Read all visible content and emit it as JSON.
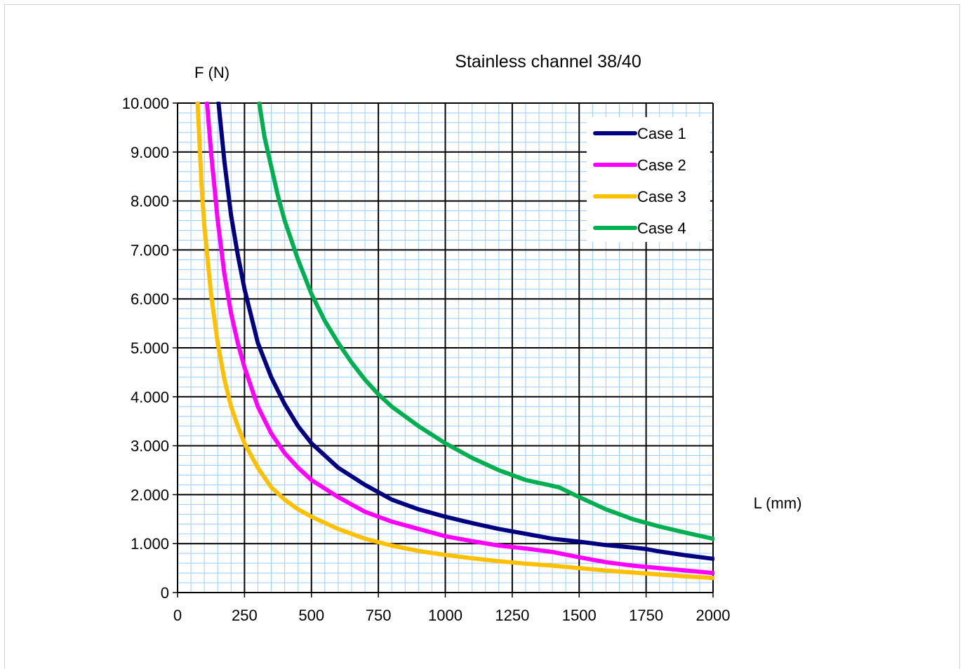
{
  "chart_data": {
    "type": "line",
    "title": "Stainless channel 38/40",
    "xlabel": "L (mm)",
    "ylabel": "F (N)",
    "xlim": [
      0,
      2000
    ],
    "ylim": [
      0,
      10000
    ],
    "x_ticks": [
      0,
      250,
      500,
      750,
      1000,
      1250,
      1500,
      1750,
      2000
    ],
    "x_tick_labels": [
      "0",
      "250",
      "500",
      "750",
      "1000",
      "1250",
      "1500",
      "1750",
      "2000"
    ],
    "y_ticks": [
      0,
      1000,
      2000,
      3000,
      4000,
      5000,
      6000,
      7000,
      8000,
      9000,
      10000
    ],
    "y_tick_labels": [
      "0",
      "1.000",
      "2.000",
      "3.000",
      "4.000",
      "5.000",
      "6.000",
      "7.000",
      "8.000",
      "9.000",
      "10.000"
    ],
    "grid": true,
    "legend_position": "top-right",
    "colors": {
      "major_grid": "#000000",
      "minor_grid": "#99ccff",
      "plot_background": "#ffffff"
    },
    "series": [
      {
        "name": "Case 1",
        "color": "#000080",
        "x": [
          153,
          175,
          200,
          225,
          250,
          300,
          350,
          400,
          450,
          500,
          600,
          700,
          750,
          800,
          900,
          1000,
          1100,
          1200,
          1300,
          1400,
          1500,
          1600,
          1700,
          1750,
          1800,
          1900,
          2000
        ],
        "y": [
          10000,
          8800,
          7700,
          6900,
          6200,
          5100,
          4400,
          3850,
          3400,
          3050,
          2550,
          2200,
          2050,
          1900,
          1700,
          1550,
          1420,
          1300,
          1200,
          1100,
          1040,
          970,
          920,
          890,
          840,
          760,
          690
        ]
      },
      {
        "name": "Case 2",
        "color": "#ff00ff",
        "x": [
          110,
          125,
          150,
          175,
          200,
          225,
          250,
          300,
          350,
          400,
          450,
          500,
          600,
          700,
          750,
          800,
          900,
          1000,
          1100,
          1200,
          1300,
          1400,
          1500,
          1600,
          1700,
          1800,
          1900,
          2000
        ],
        "y": [
          10000,
          9000,
          7600,
          6500,
          5700,
          5100,
          4600,
          3800,
          3250,
          2850,
          2550,
          2300,
          1950,
          1650,
          1550,
          1450,
          1300,
          1150,
          1050,
          960,
          900,
          830,
          720,
          620,
          550,
          500,
          450,
          400
        ]
      },
      {
        "name": "Case 3",
        "color": "#ffc000",
        "x": [
          75,
          90,
          100,
          125,
          150,
          175,
          200,
          225,
          250,
          300,
          350,
          400,
          450,
          500,
          600,
          700,
          750,
          800,
          900,
          1000,
          1100,
          1200,
          1300,
          1400,
          1500,
          1600,
          1700,
          1800,
          1900,
          2000
        ],
        "y": [
          10000,
          8300,
          7500,
          6100,
          5100,
          4350,
          3800,
          3400,
          3050,
          2550,
          2150,
          1900,
          1700,
          1550,
          1300,
          1100,
          1030,
          960,
          850,
          770,
          700,
          640,
          590,
          550,
          500,
          450,
          410,
          370,
          330,
          300
        ]
      },
      {
        "name": "Case 4",
        "color": "#00b050",
        "x": [
          305,
          325,
          350,
          375,
          400,
          450,
          500,
          550,
          600,
          650,
          700,
          750,
          800,
          900,
          1000,
          1100,
          1200,
          1300,
          1400,
          1425,
          1500,
          1600,
          1700,
          1800,
          1900,
          2000
        ],
        "y": [
          10000,
          9300,
          8700,
          8100,
          7600,
          6800,
          6100,
          5550,
          5100,
          4700,
          4350,
          4050,
          3800,
          3400,
          3050,
          2750,
          2500,
          2300,
          2180,
          2150,
          1950,
          1700,
          1500,
          1350,
          1220,
          1100
        ]
      }
    ]
  }
}
